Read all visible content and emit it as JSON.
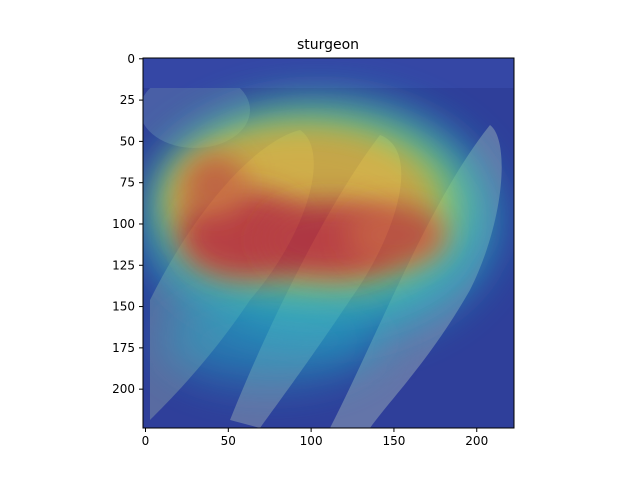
{
  "chart_data": {
    "type": "heatmap",
    "title": "sturgeon",
    "xlabel": "",
    "ylabel": "",
    "xlim": [
      0,
      224
    ],
    "ylim": [
      224,
      0
    ],
    "x_ticks": [
      0,
      50,
      100,
      150,
      200
    ],
    "y_ticks": [
      0,
      25,
      50,
      75,
      100,
      125,
      150,
      175,
      200
    ],
    "colormap": "jet",
    "overlay": "heatmap blended over photo of sturgeon fish",
    "grid": false,
    "hotspots": [
      {
        "x": 60,
        "y": 110,
        "level": 1.0
      },
      {
        "x": 115,
        "y": 112,
        "level": 0.95
      },
      {
        "x": 155,
        "y": 108,
        "level": 0.85
      },
      {
        "x": 45,
        "y": 80,
        "level": 0.8
      }
    ]
  },
  "colors": {
    "background": "#ffffff",
    "axis": "#000000",
    "cold": "#1e2fbf",
    "cool": "#23b4c8",
    "mid": "#b6e34a",
    "warm": "#f1c232",
    "hot": "#d2352b"
  }
}
